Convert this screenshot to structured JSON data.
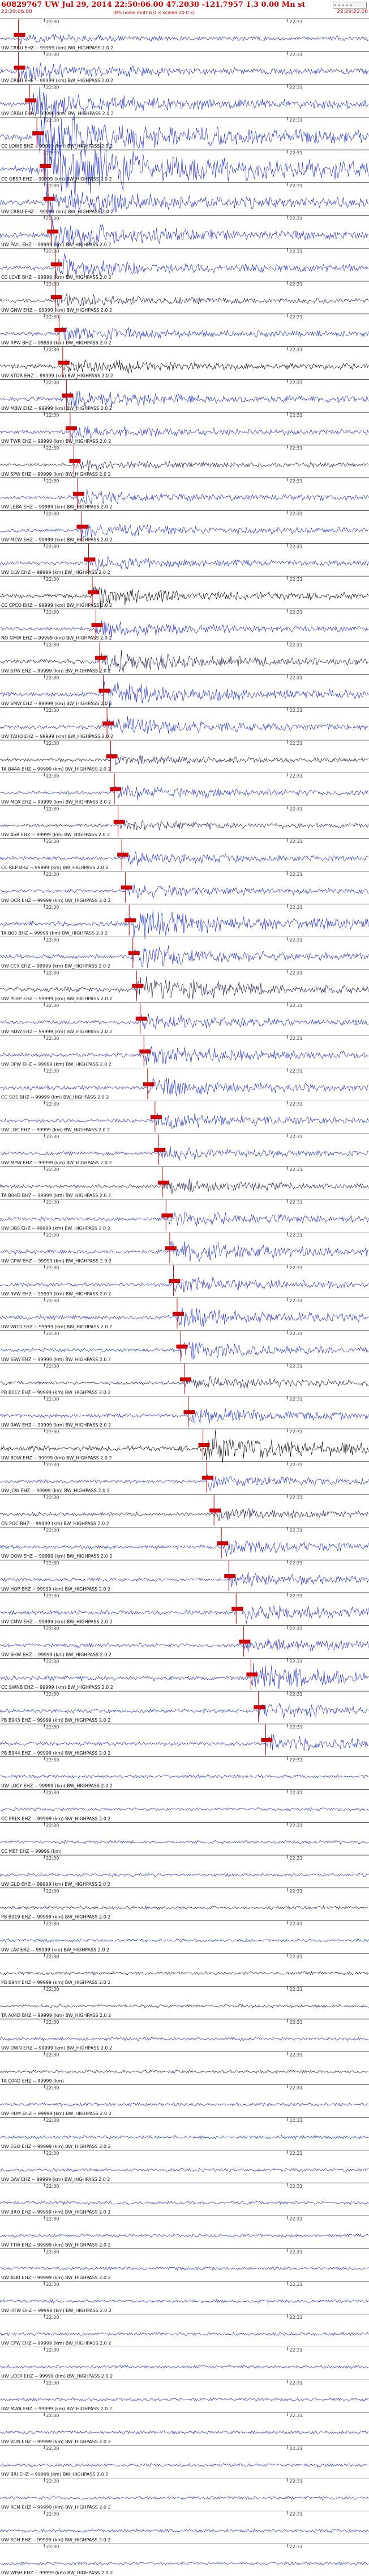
{
  "header": {
    "title": "60829767 UW Jul 29, 2014 22:50:06.00  47.2030 -121.7957  1.3 0.00 Mn st",
    "subtitle": "22:29:06.00",
    "right_time": "22:29:22.00",
    "scale_note": "(MS noise mutr 6.0 is scaled 20.0 x)",
    "box_label": "_ _ _ _ _"
  },
  "colors": {
    "trace_blue": "#1f2fd6",
    "trace_dark": "#1b1b5a",
    "trace_black": "#0a0a0a",
    "pick_red": "#cc0000",
    "grid": "#000000"
  },
  "chart_data": {
    "type": "seismogram-record-section",
    "tick_labels": [
      "22:30",
      "22:31"
    ],
    "traces": [
      {
        "label": "UW CRBU EHZ -- 99999 (km) BW_HIGHPASS 2.0 2",
        "color": "blue",
        "amplitude": 0.25,
        "pick": 0.05
      },
      {
        "label": "UW CRBU EHE -- 99999 (km) BW_HIGHPASS 2.0 2",
        "color": "blue",
        "amplitude": 0.6,
        "pick": 0.05
      },
      {
        "label": "UW CRBU EHN -- 99999 (km) BW_HIGHPASS 2.0 2",
        "color": "blue",
        "amplitude": 0.9,
        "pick": 0.08
      },
      {
        "label": "CC LOWE BHZ -- 99999 (km) BW_HIGHPASS 2.0 2",
        "color": "blue",
        "amplitude": 1.6,
        "pick": 0.1
      },
      {
        "label": "CC OBSR EHZ -- 99999 (km) BW_HIGHPASS 2.0 2",
        "color": "blue",
        "amplitude": 2.2,
        "pick": 0.12
      },
      {
        "label": "UW CRBU EHZ -- 99999 (km) BW_HIGHPASS 2.0 2",
        "color": "blue",
        "amplitude": 1.0,
        "pick": 0.13
      },
      {
        "label": "UW PAYL EHZ -- 99999 (km) BW_HIGHPASS 2.0 2",
        "color": "blue",
        "amplitude": 0.9,
        "pick": 0.14
      },
      {
        "label": "CC LCVE BHZ -- 99999 (km) BW_HIGHPASS 2.0 2",
        "color": "blue",
        "amplitude": 0.7,
        "pick": 0.15
      },
      {
        "label": "UW GNW EHZ -- 99999 (km) BW_HIGHPASS 2.0 2",
        "color": "dark",
        "amplitude": 0.4,
        "pick": 0.15
      },
      {
        "label": "UW RPW BHZ -- 99999 (km) BW_HIGHPASS 2.0 2",
        "color": "blue",
        "amplitude": 0.5,
        "pick": 0.16
      },
      {
        "label": "UW STOR EHZ -- 99999 (km) BW_HIGHPASS 2.0 2",
        "color": "black",
        "amplitude": 0.5,
        "pick": 0.17
      },
      {
        "label": "UW MBW EHZ -- 99999 (km) BW_HIGHPASS 2.0 2",
        "color": "blue",
        "amplitude": 0.6,
        "pick": 0.18
      },
      {
        "label": "UW TWR EHZ -- 99999 (km) BW_HIGHPASS 2.0 2",
        "color": "blue",
        "amplitude": 0.4,
        "pick": 0.19
      },
      {
        "label": "UW SPW EHZ -- 99999 (km) BW_HIGHPASS 2.0 2",
        "color": "dark",
        "amplitude": 0.3,
        "pick": 0.2
      },
      {
        "label": "UW LEBA EHZ -- 99999 (km) BW_HIGHPASS 2.0 2",
        "color": "blue",
        "amplitude": 0.4,
        "pick": 0.21
      },
      {
        "label": "UW MCW EHZ -- 99999 (km) BW_HIGHPASS 2.0 2",
        "color": "blue",
        "amplitude": 0.5,
        "pick": 0.22
      },
      {
        "label": "UW ELW EHZ -- 99999 (km) BW_HIGHPASS 2.0 2",
        "color": "blue",
        "amplitude": 0.4,
        "pick": 0.24
      },
      {
        "label": "CC CPCO BHZ -- 99999 (km) BW_HIGHPASS 2.0 2",
        "color": "black",
        "amplitude": 0.6,
        "pick": 0.25
      },
      {
        "label": "NO GMW EHZ -- 99999 (km) BW_HIGHPASS 2.0 2",
        "color": "blue",
        "amplitude": 0.5,
        "pick": 0.26
      },
      {
        "label": "UW STW EHZ -- 99999 (km) BW_HIGHPASS 2.0 2",
        "color": "dark",
        "amplitude": 0.7,
        "pick": 0.27
      },
      {
        "label": "UW SMW EHZ -- 99999 (km) BW_HIGHPASS 2.0 2",
        "color": "blue",
        "amplitude": 0.8,
        "pick": 0.28
      },
      {
        "label": "UW TAHO EHZ -- 99999 (km) BW_HIGHPASS 2.0 2",
        "color": "blue",
        "amplitude": 0.6,
        "pick": 0.29
      },
      {
        "label": "TA B44A BHZ -- 99999 (km) BW_HIGHPASS 2.0 2",
        "color": "dark",
        "amplitude": 0.3,
        "pick": 0.3
      },
      {
        "label": "UW MOX EHZ -- 99999 (km) BW_HIGHPASS 2.0 2",
        "color": "blue",
        "amplitude": 0.4,
        "pick": 0.31
      },
      {
        "label": "UW ASR EHZ -- 99999 (km) BW_HIGHPASS 2.0 2",
        "color": "dark",
        "amplitude": 0.3,
        "pick": 0.32
      },
      {
        "label": "CC REP BHZ -- 99999 (km) BW_HIGHPASS 2.0 2",
        "color": "blue",
        "amplitude": 0.4,
        "pick": 0.33
      },
      {
        "label": "UW OCR EHZ -- 99999 (km) BW_HIGHPASS 2.0 2",
        "color": "blue",
        "amplitude": 0.4,
        "pick": 0.34
      },
      {
        "label": "TA B03 BHZ -- 99999 (km) BW_HIGHPASS 2.0 2",
        "color": "blue",
        "amplitude": 0.9,
        "pick": 0.35
      },
      {
        "label": "UW CCX EHZ -- 99999 (km) BW_HIGHPASS 2.0 2",
        "color": "blue",
        "amplitude": 0.7,
        "pick": 0.36
      },
      {
        "label": "UW PCEP EHZ -- 99999 (km) BW_HIGHPASS 2.0 2",
        "color": "dark",
        "amplitude": 0.8,
        "pick": 0.37
      },
      {
        "label": "UW HDW EHZ -- 99999 (km) BW_HIGHPASS 2.0 2",
        "color": "blue",
        "amplitude": 0.5,
        "pick": 0.38
      },
      {
        "label": "UW DPW EHZ -- 99999 (km) BW_HIGHPASS 2.0 2",
        "color": "blue",
        "amplitude": 0.6,
        "pick": 0.39
      },
      {
        "label": "CC SOS BHZ -- 99999 (km) BW_HIGHPASS 2.0 2",
        "color": "blue",
        "amplitude": 0.6,
        "pick": 0.4
      },
      {
        "label": "UW LOC EHZ -- 99999 (km) BW_HIGHPASS 2.0 2",
        "color": "blue",
        "amplitude": 0.5,
        "pick": 0.42
      },
      {
        "label": "UW MPW EHZ -- 99999 (km) BW_HIGHPASS 2.0 2",
        "color": "blue",
        "amplitude": 0.4,
        "pick": 0.43
      },
      {
        "label": "TA B04D BHZ -- 99999 (km) BW_HIGHPASS 2.0 2",
        "color": "dark",
        "amplitude": 0.4,
        "pick": 0.44
      },
      {
        "label": "UW OBS EHZ -- 99999 (km) BW_HIGHPASS 2.0 2",
        "color": "blue",
        "amplitude": 0.5,
        "pick": 0.45
      },
      {
        "label": "UW GPW EHZ -- 99999 (km) BW_HIGHPASS 2.0 2",
        "color": "blue",
        "amplitude": 0.7,
        "pick": 0.46
      },
      {
        "label": "UW RVW EHZ -- 99999 (km) BW_HIGHPASS 2.0 2",
        "color": "blue",
        "amplitude": 0.5,
        "pick": 0.47
      },
      {
        "label": "UW WOD EHZ -- 99999 (km) BW_HIGHPASS 2.0 2",
        "color": "blue",
        "amplitude": 0.6,
        "pick": 0.48
      },
      {
        "label": "UW SSW EHZ -- 99999 (km) BW_HIGHPASS 2.0 2",
        "color": "blue",
        "amplitude": 0.5,
        "pick": 0.49
      },
      {
        "label": "PB B012 EHZ -- 99999 (km) BW_HIGHPASS 2.0 2",
        "color": "dark",
        "amplitude": 0.4,
        "pick": 0.5
      },
      {
        "label": "UW RAW EHZ -- 99999 (km) BW_HIGHPASS 2.0 2",
        "color": "blue",
        "amplitude": 0.5,
        "pick": 0.51
      },
      {
        "label": "UW BOW EHZ -- 99999 (km) BW_HIGHPASS 2.0 2",
        "color": "black",
        "amplitude": 1.0,
        "pick": 0.55
      },
      {
        "label": "UW JCW EHZ -- 99999 (km) BW_HIGHPASS 2.0 2",
        "color": "blue",
        "amplitude": 0.4,
        "pick": 0.56
      },
      {
        "label": "CN PGC BHZ -- 99999 (km) BW_HIGHPASS 2.0 2",
        "color": "dark",
        "amplitude": 0.4,
        "pick": 0.58
      },
      {
        "label": "UW OOW EHZ -- 99999 (km) BW_HIGHPASS 2.0 2",
        "color": "blue",
        "amplitude": 0.5,
        "pick": 0.6
      },
      {
        "label": "UW HOP EHZ -- 99999 (km) BW_HIGHPASS 2.0 2",
        "color": "blue",
        "amplitude": 0.4,
        "pick": 0.62
      },
      {
        "label": "UW CMW EHZ -- 99999 (km) BW_HIGHPASS 2.0 2",
        "color": "blue",
        "amplitude": 0.6,
        "pick": 0.64
      },
      {
        "label": "UW SHW EHZ -- 99999 (km) BW_HIGHPASS 2.0 2",
        "color": "blue",
        "amplitude": 0.5,
        "pick": 0.66
      },
      {
        "label": "CC SWNB EHZ -- 99999 (km) BW_HIGHPASS 2.0 2",
        "color": "blue",
        "amplitude": 0.8,
        "pick": 0.68
      },
      {
        "label": "PB B943 EHZ -- 99999 (km) BW_HIGHPASS 2.0 2",
        "color": "blue",
        "amplitude": 0.5,
        "pick": 0.7
      },
      {
        "label": "PB B944 EHZ -- 99999 (km) BW_HIGHPASS 2.0 2",
        "color": "blue",
        "amplitude": 0.5,
        "pick": 0.72
      },
      {
        "label": "UW LOCY EHZ -- 99999 (km) BW_HIGHPASS 2.0 2",
        "color": "blue",
        "amplitude": 0.3,
        "pick": -1
      },
      {
        "label": "CC PRLK EHZ -- 99999 (km) BW_HIGHPASS 2.0 2",
        "color": "blue",
        "amplitude": 0.3,
        "pick": -1
      },
      {
        "label": "CC MEF EHZ -- 99999 (km)",
        "color": "blue",
        "amplitude": 0.3,
        "pick": -1
      },
      {
        "label": "UW GLD EHZ -- 99999 (km) BW_HIGHPASS 2.0 2",
        "color": "blue",
        "amplitude": 0.3,
        "pick": -1
      },
      {
        "label": "PB B019 EHZ -- 99999 (km) BW_HIGHPASS 2.0 2",
        "color": "dark",
        "amplitude": 0.3,
        "pick": -1
      },
      {
        "label": "UW LAV EHZ -- 99999 (km) BW_HIGHPASS 2.0 2",
        "color": "blue",
        "amplitude": 0.3,
        "pick": -1
      },
      {
        "label": "PB B944 EHZ -- 99999 (km) BW_HIGHPASS 2.0 2",
        "color": "dark",
        "amplitude": 0.3,
        "pick": -1
      },
      {
        "label": "TA A04D BHZ -- 99999 (km) BW_HIGHPASS 2.0 2",
        "color": "dark",
        "amplitude": 0.3,
        "pick": -1
      },
      {
        "label": "UW OWN EHZ -- 99999 (km) BW_HIGHPASS 2.0 2",
        "color": "blue",
        "amplitude": 0.3,
        "pick": -1
      },
      {
        "label": "TA C04D EHZ -- 99999 (km)",
        "color": "dark",
        "amplitude": 0.3,
        "pick": -1
      },
      {
        "label": "UW HUM EHZ -- 99999 (km) BW_HIGHPASS 2.0 2",
        "color": "blue",
        "amplitude": 0.35,
        "pick": -1
      },
      {
        "label": "UW EGO EHZ -- 99999 (km) BW_HIGHPASS 2.0 2",
        "color": "blue",
        "amplitude": 0.35,
        "pick": -1
      },
      {
        "label": "UW DAV EHZ -- 99999 (km) BW_HIGHPASS 2.0 2",
        "color": "blue",
        "amplitude": 0.3,
        "pick": -1
      },
      {
        "label": "UW BRO EHZ -- 99999 (km) BW_HIGHPASS 2.0 2",
        "color": "blue",
        "amplitude": 0.3,
        "pick": -1
      },
      {
        "label": "UW TTW EHZ -- 99999 (km) BW_HIGHPASS 2.0 2",
        "color": "blue",
        "amplitude": 0.3,
        "pick": -1
      },
      {
        "label": "UW ALKI EHZ -- 99999 (km) BW_HIGHPASS 2.0 2",
        "color": "blue",
        "amplitude": 0.3,
        "pick": -1
      },
      {
        "label": "UW HTW EHZ -- 99999 (km) BW_HIGHPASS 2.0 2",
        "color": "blue",
        "amplitude": 0.3,
        "pick": -1
      },
      {
        "label": "UW CPW EHZ -- 99999 (km) BW_HIGHPASS 2.0 2",
        "color": "blue",
        "amplitude": 0.3,
        "pick": -1
      },
      {
        "label": "UW LCCR EHZ -- 99999 (km) BW_HIGHPASS 2.0 2",
        "color": "blue",
        "amplitude": 0.3,
        "pick": -1
      },
      {
        "label": "UW MWA EHZ -- 99999 (km) BW_HIGHPASS 2.0 2",
        "color": "blue",
        "amplitude": 0.3,
        "pick": -1
      },
      {
        "label": "UW VON EHZ -- 99999 (km) BW_HIGHPASS 2.0 2",
        "color": "blue",
        "amplitude": 0.3,
        "pick": -1
      },
      {
        "label": "UW BRI EHZ -- 99999 (km) BW_HIGHPASS 2.0 2",
        "color": "blue",
        "amplitude": 0.3,
        "pick": -1
      },
      {
        "label": "UW RCM EHZ -- 99999 (km) BW_HIGHPASS 2.0 2",
        "color": "blue",
        "amplitude": 0.3,
        "pick": -1
      },
      {
        "label": "UW SGH EHZ -- 99999 (km) BW_HIGHPASS 2.0 2",
        "color": "blue",
        "amplitude": 0.3,
        "pick": -1
      },
      {
        "label": "UW WISH EHZ -- 99999 (km) BW_HIGHPASS 2.0 2",
        "color": "blue",
        "amplitude": 0.3,
        "pick": -1
      }
    ]
  }
}
